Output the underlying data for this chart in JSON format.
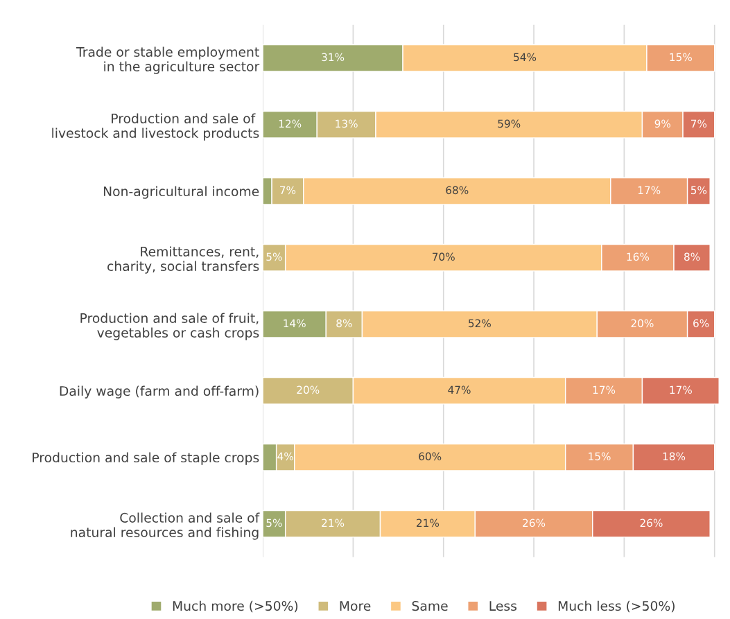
{
  "chart_data": {
    "type": "bar",
    "orientation": "horizontal",
    "stacked": true,
    "categories": [
      "Trade or stable employment\nin the agriculture sector",
      "Production and sale of \nlivestock and livestock products",
      "Non-agricultural income",
      "Remittances, rent,\ncharity, social transfers",
      "Production and sale of fruit,\nvegetables or cash crops",
      "Daily wage (farm and off-farm)",
      "Production and sale of staple crops",
      "Collection and sale of\nnatural resources and fishing"
    ],
    "series": [
      {
        "name": "Much more (>50%)",
        "color": "#9fab6d",
        "values": [
          31,
          12,
          2,
          null,
          14,
          null,
          3,
          5
        ],
        "value_labels": [
          "31%",
          "12%",
          null,
          null,
          "14%",
          null,
          null,
          "5%"
        ]
      },
      {
        "name": "More",
        "color": "#cfbb7b",
        "values": [
          null,
          13,
          7,
          5,
          8,
          20,
          4,
          21
        ],
        "value_labels": [
          null,
          "13%",
          "7%",
          "5%",
          "8%",
          "20%",
          "4%",
          "21%"
        ]
      },
      {
        "name": "Same",
        "color": "#fbc883",
        "values": [
          54,
          59,
          68,
          70,
          52,
          47,
          60,
          21
        ],
        "value_labels": [
          "54%",
          "59%",
          "68%",
          "70%",
          "52%",
          "47%",
          "60%",
          "21%"
        ]
      },
      {
        "name": "Less",
        "color": "#eda072",
        "values": [
          15,
          9,
          17,
          16,
          20,
          17,
          15,
          26
        ],
        "value_labels": [
          "15%",
          "9%",
          "17%",
          "16%",
          "20%",
          "17%",
          "15%",
          "26%"
        ]
      },
      {
        "name": "Much less (>50%)",
        "color": "#d9745e",
        "values": [
          null,
          7,
          5,
          8,
          6,
          17,
          18,
          26
        ],
        "value_labels": [
          null,
          "7%",
          "5%",
          "8%",
          "6%",
          "17%",
          "18%",
          "26%"
        ]
      }
    ],
    "xlim": [
      0,
      101
    ],
    "xticks": [
      {
        "value": 0,
        "label": null
      },
      {
        "value": 20,
        "label": null
      },
      {
        "value": 40,
        "label": null
      },
      {
        "value": 60,
        "label": null
      },
      {
        "value": 80,
        "label": null
      },
      {
        "value": 100,
        "label": null
      }
    ],
    "grid": "x",
    "legend": "bottom",
    "tick_labels": "y"
  }
}
